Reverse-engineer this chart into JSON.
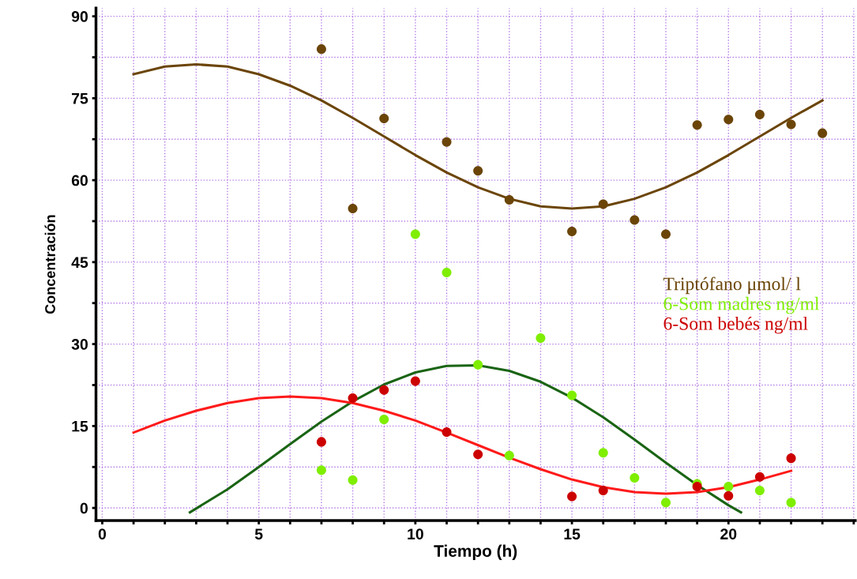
{
  "chart_data": {
    "type": "scatter",
    "xlabel": "Tiempo (h)",
    "ylabel": "Concentración",
    "xlim": [
      -0.2,
      24.05
    ],
    "ylim": [
      -2.3,
      91.5
    ],
    "xticks": [
      0,
      {
        "value": 1,
        "label": null
      },
      {
        "value": 2,
        "label": null
      },
      {
        "value": 3,
        "label": null
      },
      {
        "value": 4,
        "label": null
      },
      5,
      {
        "value": 6,
        "label": null
      },
      {
        "value": 7,
        "label": null
      },
      {
        "value": 8,
        "label": null
      },
      {
        "value": 9,
        "label": null
      },
      10,
      {
        "value": 11,
        "label": null
      },
      {
        "value": 12,
        "label": null
      },
      {
        "value": 13,
        "label": null
      },
      {
        "value": 14,
        "label": null
      },
      15,
      {
        "value": 16,
        "label": null
      },
      {
        "value": 17,
        "label": null
      },
      {
        "value": 18,
        "label": null
      },
      {
        "value": 19,
        "label": null
      },
      20,
      {
        "value": 21,
        "label": null
      },
      {
        "value": 22,
        "label": null
      },
      {
        "value": 23,
        "label": null
      },
      {
        "value": 24,
        "label": null
      }
    ],
    "yticks": [
      0,
      {
        "value": 7.5,
        "label": null
      },
      15,
      {
        "value": 22.5,
        "label": null
      },
      30,
      {
        "value": 37.5,
        "label": null
      },
      45,
      {
        "value": 52.5,
        "label": null
      },
      60,
      {
        "value": 67.5,
        "label": null
      },
      75,
      {
        "value": 82.5,
        "label": null
      },
      90
    ],
    "grid": true,
    "legend": "right",
    "line_style": "solid",
    "series": [
      {
        "name": "Triptófano μmol/ l",
        "marker": "circle",
        "color": "#6b4508",
        "x": [
          7,
          8,
          9,
          11,
          12,
          13,
          15,
          16,
          17,
          18,
          19,
          20,
          21,
          22,
          23
        ],
        "values": [
          84.0,
          54.8,
          71.3,
          67.0,
          61.7,
          56.4,
          50.6,
          55.6,
          52.7,
          50.1,
          70.1,
          71.1,
          72.0,
          70.2,
          68.6
        ]
      },
      {
        "type": "line",
        "color": "#6b4508",
        "x": [
          1,
          2,
          3,
          4,
          5,
          6,
          7,
          8,
          9,
          10,
          11,
          12,
          13,
          14,
          15,
          16,
          17,
          18,
          19,
          20,
          21,
          22,
          23
        ],
        "values": [
          79.4,
          80.8,
          81.2,
          80.8,
          79.4,
          77.3,
          74.6,
          71.4,
          68.0,
          64.6,
          61.4,
          58.7,
          56.6,
          55.2,
          54.8,
          55.2,
          56.6,
          58.7,
          61.4,
          64.6,
          68.0,
          71.4,
          74.6
        ]
      },
      {
        "name": "6-Som madres ng/ml",
        "marker": "circle",
        "color": "#7fee00",
        "x": [
          7,
          8,
          9,
          10,
          11,
          12,
          13,
          14,
          15,
          16,
          17,
          18,
          19,
          20,
          21,
          22
        ],
        "values": [
          6.9,
          5.1,
          16.2,
          50.1,
          43.1,
          26.2,
          9.6,
          31.1,
          20.6,
          10.1,
          5.5,
          1.0,
          4.4,
          3.9,
          3.2,
          1.0
        ]
      },
      {
        "type": "line",
        "color": "#1a6414",
        "x": [
          2.8,
          4,
          5,
          6,
          7,
          8,
          9,
          10,
          11,
          12,
          13,
          14,
          15,
          16,
          17,
          18,
          19,
          20,
          20.4
        ],
        "values": [
          -0.8,
          3.4,
          7.5,
          11.7,
          15.8,
          19.5,
          22.6,
          24.8,
          26.0,
          26.1,
          25.1,
          23.1,
          20.2,
          16.6,
          12.5,
          8.3,
          4.2,
          0.5,
          -0.8
        ]
      },
      {
        "name": "6-Som bebés ng/ml",
        "marker": "circle",
        "color": "#cc0000",
        "x": [
          7,
          8,
          9,
          10,
          11,
          12,
          15,
          16,
          19,
          20,
          21,
          22
        ],
        "values": [
          12.1,
          20.1,
          21.6,
          23.2,
          13.9,
          9.8,
          2.1,
          3.2,
          3.9,
          2.2,
          5.7,
          9.1
        ]
      },
      {
        "type": "line",
        "color": "#ff1a1a",
        "x": [
          1,
          2,
          3,
          4,
          5,
          6,
          7,
          8,
          9,
          10,
          11,
          12,
          13,
          14,
          15,
          16,
          17,
          18,
          19,
          20,
          21,
          22
        ],
        "values": [
          13.8,
          16.0,
          17.8,
          19.2,
          20.1,
          20.4,
          20.1,
          19.2,
          17.8,
          16.0,
          13.8,
          11.5,
          9.2,
          7.1,
          5.2,
          3.8,
          2.9,
          2.6,
          2.9,
          3.8,
          5.2,
          6.8
        ]
      }
    ]
  }
}
